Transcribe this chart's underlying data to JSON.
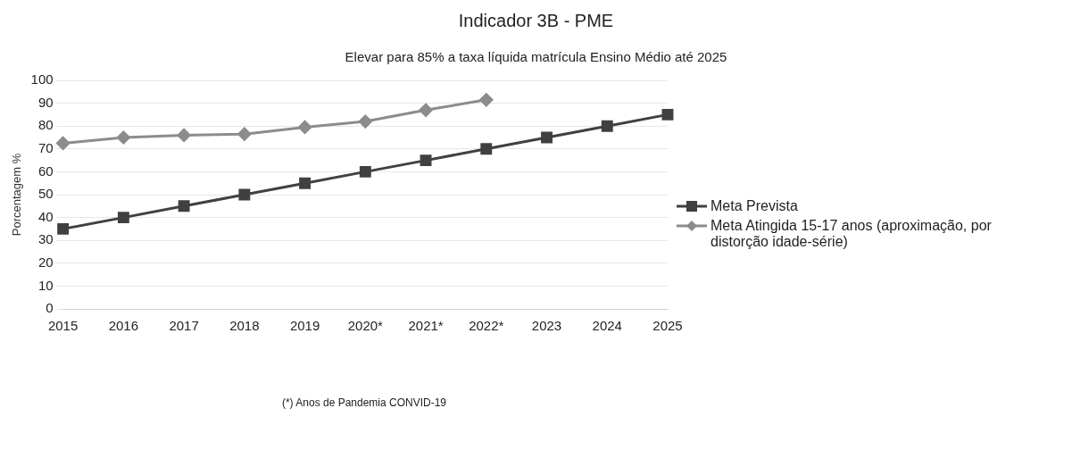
{
  "chart_data": {
    "type": "line",
    "title": "Indicador 3B - PME",
    "subtitle": "Elevar para 85% a taxa líquida matrícula Ensino Médio até 2025",
    "ylabel": "Porcentagem %",
    "categories": [
      "2015",
      "2016",
      "2017",
      "2018",
      "2019",
      "2020*",
      "2021*",
      "2022*",
      "2023",
      "2024",
      "2025"
    ],
    "series": [
      {
        "name": "Meta Prevista",
        "color": "#404040",
        "marker": "square",
        "values": [
          35,
          40,
          45,
          50,
          55,
          60,
          65,
          70,
          75,
          80,
          85
        ]
      },
      {
        "name": "Meta Atingida 15-17 anos (aproximação, por distorção idade-série)",
        "color": "#8c8c8c",
        "marker": "diamond",
        "values": [
          72.5,
          75,
          76,
          76.5,
          79.5,
          82,
          87,
          91.5,
          null,
          null,
          null
        ]
      }
    ],
    "ylim": [
      0,
      100
    ],
    "yticks": [
      0,
      10,
      20,
      30,
      40,
      50,
      60,
      70,
      80,
      90,
      100
    ],
    "grid": "y",
    "legend": "right",
    "annotations": [
      "(*) Anos de Pandemia CONVID-19"
    ]
  }
}
